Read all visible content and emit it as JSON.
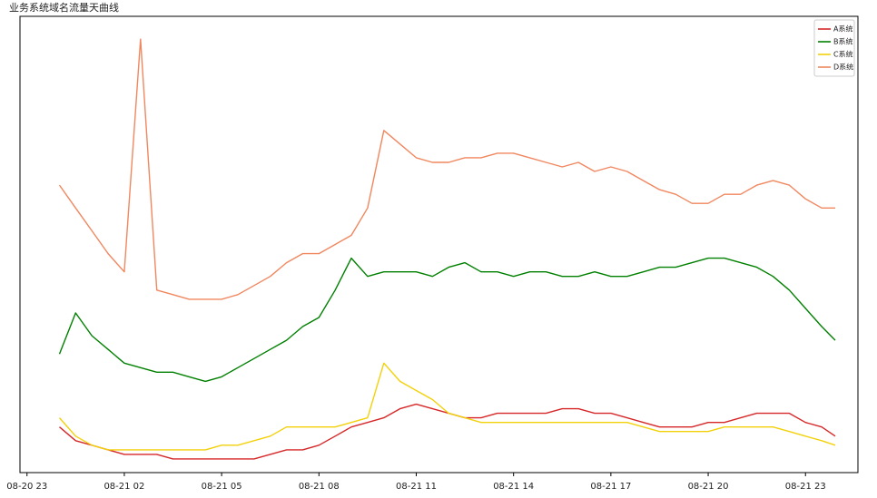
{
  "chart_data": {
    "type": "line",
    "title": "业务系统域名流量天曲线",
    "x": [
      "08-21 00:00",
      "08-21 00:30",
      "08-21 01:00",
      "08-21 01:30",
      "08-21 02:00",
      "08-21 02:30",
      "08-21 03:00",
      "08-21 03:30",
      "08-21 04:00",
      "08-21 04:30",
      "08-21 05:00",
      "08-21 05:30",
      "08-21 06:00",
      "08-21 06:30",
      "08-21 07:00",
      "08-21 07:30",
      "08-21 08:00",
      "08-21 08:30",
      "08-21 09:00",
      "08-21 09:30",
      "08-21 10:00",
      "08-21 10:30",
      "08-21 11:00",
      "08-21 11:30",
      "08-21 12:00",
      "08-21 12:30",
      "08-21 13:00",
      "08-21 13:30",
      "08-21 14:00",
      "08-21 14:30",
      "08-21 15:00",
      "08-21 15:30",
      "08-21 16:00",
      "08-21 16:30",
      "08-21 17:00",
      "08-21 17:30",
      "08-21 18:00",
      "08-21 18:30",
      "08-21 19:00",
      "08-21 19:30",
      "08-21 20:00",
      "08-21 20:30",
      "08-21 21:00",
      "08-21 21:30",
      "08-21 22:00",
      "08-21 22:30",
      "08-21 23:00",
      "08-21 23:30",
      "08-21 23:55"
    ],
    "series": [
      {
        "name": "A系统",
        "color": "#d62728",
        "values": [
          10,
          7,
          6,
          5,
          4,
          4,
          4,
          3,
          3,
          3,
          3,
          3,
          3,
          4,
          5,
          5,
          6,
          8,
          10,
          11,
          12,
          14,
          15,
          14,
          13,
          12,
          12,
          13,
          13,
          13,
          13,
          14,
          14,
          13,
          13,
          12,
          11,
          10,
          10,
          10,
          11,
          11,
          12,
          13,
          13,
          13,
          11,
          10,
          8
        ]
      },
      {
        "name": "B系统",
        "color": "#008000",
        "values": [
          26,
          35,
          30,
          27,
          24,
          23,
          22,
          22,
          21,
          20,
          21,
          23,
          25,
          27,
          29,
          32,
          34,
          40,
          47,
          43,
          44,
          44,
          44,
          43,
          45,
          46,
          44,
          44,
          43,
          44,
          44,
          43,
          43,
          44,
          43,
          43,
          44,
          45,
          45,
          46,
          47,
          47,
          46,
          45,
          43,
          40,
          36,
          32,
          29
        ]
      },
      {
        "name": "C系统",
        "color": "#f2d10a",
        "values": [
          12,
          8,
          6,
          5,
          5,
          5,
          5,
          5,
          5,
          5,
          6,
          6,
          7,
          8,
          10,
          10,
          10,
          10,
          11,
          12,
          24,
          20,
          18,
          16,
          13,
          12,
          11,
          11,
          11,
          11,
          11,
          11,
          11,
          11,
          11,
          11,
          10,
          9,
          9,
          9,
          9,
          10,
          10,
          10,
          10,
          9,
          8,
          7,
          6
        ]
      },
      {
        "name": "D系统",
        "color": "#f0875f",
        "values": [
          63,
          58,
          53,
          48,
          44,
          95,
          40,
          39,
          38,
          38,
          38,
          39,
          41,
          43,
          46,
          48,
          48,
          50,
          52,
          58,
          75,
          72,
          69,
          68,
          68,
          69,
          69,
          70,
          70,
          69,
          68,
          67,
          68,
          66,
          67,
          66,
          64,
          62,
          61,
          59,
          59,
          61,
          61,
          63,
          64,
          63,
          60,
          58,
          58
        ]
      }
    ],
    "xlim": [
      "08-20 22:47",
      "08-22 00:37"
    ],
    "xticks": [
      "08-20 23",
      "08-21 02",
      "08-21 05",
      "08-21 08",
      "08-21 11",
      "08-21 14",
      "08-21 17",
      "08-21 20",
      "08-21 23"
    ],
    "ylim": [
      0,
      100
    ],
    "legend": "upper right"
  }
}
